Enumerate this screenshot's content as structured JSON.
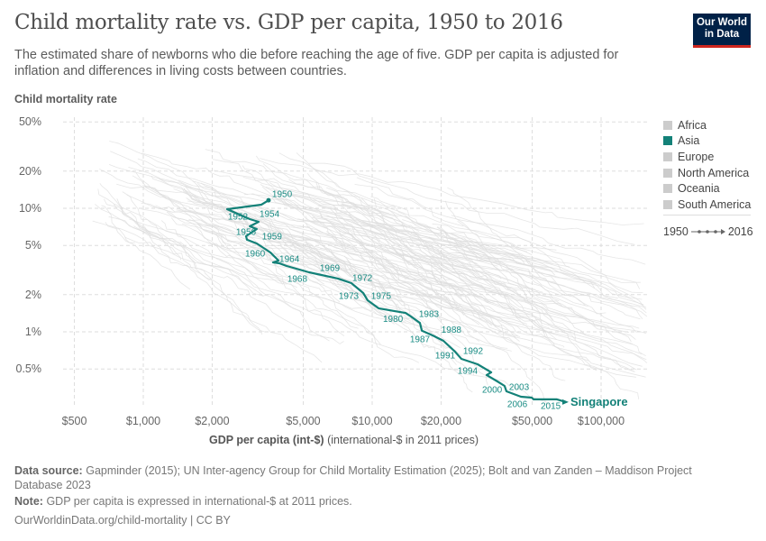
{
  "header": {
    "title": "Child mortality rate vs. GDP per capita, 1950 to 2016",
    "subtitle": "The estimated share of newborns who die before reaching the age of five. GDP per capita is adjusted for inflation and differences in living costs between countries.",
    "logo": "Our World in Data"
  },
  "legend": {
    "items": [
      {
        "label": "Africa",
        "color": "#cccccc"
      },
      {
        "label": "Asia",
        "color": "#138178"
      },
      {
        "label": "Europe",
        "color": "#cccccc"
      },
      {
        "label": "North America",
        "color": "#cccccc"
      },
      {
        "label": "Oceania",
        "color": "#cccccc"
      },
      {
        "label": "South America",
        "color": "#cccccc"
      }
    ],
    "timeline_start": "1950",
    "timeline_end": "2016"
  },
  "chart_data": {
    "type": "scatter",
    "connected": true,
    "xlabel": "GDP per capita (int-$)",
    "xlabel_note": "(international-$ in 2011 prices)",
    "ylabel": "Child mortality rate",
    "x_scale": "log",
    "y_scale": "log",
    "xlim": [
      400,
      140000
    ],
    "ylim": [
      0.25,
      55
    ],
    "x_ticks": [
      {
        "v": 500,
        "l": "$500"
      },
      {
        "v": 1000,
        "l": "$1,000"
      },
      {
        "v": 2000,
        "l": "$2,000"
      },
      {
        "v": 5000,
        "l": "$5,000"
      },
      {
        "v": 10000,
        "l": "$10,000"
      },
      {
        "v": 20000,
        "l": "$20,000"
      },
      {
        "v": 50000,
        "l": "$50,000"
      },
      {
        "v": 100000,
        "l": "$100,000"
      }
    ],
    "y_ticks": [
      {
        "v": 50,
        "l": "50%"
      },
      {
        "v": 20,
        "l": "20%"
      },
      {
        "v": 10,
        "l": "10%"
      },
      {
        "v": 5,
        "l": "5%"
      },
      {
        "v": 2,
        "l": "2%"
      },
      {
        "v": 1,
        "l": "1%"
      },
      {
        "v": 0.5,
        "l": "0.5%"
      }
    ],
    "grid": true,
    "highlight_color": "#138178",
    "background_color": "#dddddd",
    "series": [
      {
        "name": "Singapore",
        "points": [
          [
            3525,
            11.6
          ],
          [
            3280,
            10.7
          ],
          [
            2323,
            9.83
          ],
          [
            2920,
            8.17
          ],
          [
            3190,
            7.77
          ],
          [
            2920,
            7.15
          ],
          [
            3130,
            6.79
          ],
          [
            2810,
            5.94
          ],
          [
            2840,
            5.56
          ],
          [
            3130,
            5.19
          ],
          [
            3590,
            4.39
          ],
          [
            3900,
            3.77
          ],
          [
            3690,
            3.65
          ],
          [
            3930,
            3.59
          ],
          [
            4230,
            3.41
          ],
          [
            5300,
            3.03
          ],
          [
            7080,
            2.7
          ],
          [
            8110,
            2.48
          ],
          [
            9140,
            2.06
          ],
          [
            9550,
            1.8
          ],
          [
            10660,
            1.55
          ],
          [
            12540,
            1.47
          ],
          [
            13990,
            1.42
          ],
          [
            14770,
            1.33
          ],
          [
            16170,
            1.18
          ],
          [
            16480,
            1.02
          ],
          [
            18370,
            0.935
          ],
          [
            20480,
            0.845
          ],
          [
            23030,
            0.69
          ],
          [
            24540,
            0.604
          ],
          [
            28890,
            0.546
          ],
          [
            33110,
            0.47
          ],
          [
            31630,
            0.447
          ],
          [
            35240,
            0.397
          ],
          [
            37890,
            0.365
          ],
          [
            38610,
            0.33
          ],
          [
            44650,
            0.298
          ],
          [
            49780,
            0.293
          ],
          [
            50700,
            0.284
          ],
          [
            64150,
            0.284
          ],
          [
            70210,
            0.27
          ]
        ],
        "year_labels": [
          {
            "year": "1950",
            "x": 4040,
            "y": 13.1
          },
          {
            "year": "1952",
            "x": 2590,
            "y": 8.59
          },
          {
            "year": "1954",
            "x": 3560,
            "y": 9.04
          },
          {
            "year": "1956",
            "x": 2810,
            "y": 6.46
          },
          {
            "year": "1959",
            "x": 3650,
            "y": 5.94
          },
          {
            "year": "1960",
            "x": 3080,
            "y": 4.31
          },
          {
            "year": "1964",
            "x": 4350,
            "y": 3.9
          },
          {
            "year": "1968",
            "x": 4710,
            "y": 2.7
          },
          {
            "year": "1969",
            "x": 6530,
            "y": 3.3
          },
          {
            "year": "1972",
            "x": 9060,
            "y": 2.74
          },
          {
            "year": "1973",
            "x": 7900,
            "y": 1.96
          },
          {
            "year": "1975",
            "x": 10940,
            "y": 1.96
          },
          {
            "year": "1980",
            "x": 12330,
            "y": 1.28
          },
          {
            "year": "1983",
            "x": 17700,
            "y": 1.4
          },
          {
            "year": "1987",
            "x": 16170,
            "y": 0.875
          },
          {
            "year": "1988",
            "x": 22180,
            "y": 1.04
          },
          {
            "year": "1991",
            "x": 20840,
            "y": 0.646
          },
          {
            "year": "1992",
            "x": 27590,
            "y": 0.703
          },
          {
            "year": "1994",
            "x": 26120,
            "y": 0.485
          },
          {
            "year": "2000",
            "x": 33420,
            "y": 0.341
          },
          {
            "year": "2003",
            "x": 43850,
            "y": 0.359
          },
          {
            "year": "2006",
            "x": 43050,
            "y": 0.261
          },
          {
            "year": "2015",
            "x": 60260,
            "y": 0.252
          }
        ]
      }
    ]
  },
  "footer": {
    "source_label": "Data source:",
    "source": "Gapminder (2015); UN Inter-agency Group for Child Mortality Estimation (2025); Bolt and van Zanden – Maddison Project Database 2023",
    "note_label": "Note:",
    "note": "GDP per capita is expressed in international-$ at 2011 prices.",
    "url": "OurWorldinData.org/child-mortality | CC BY"
  }
}
